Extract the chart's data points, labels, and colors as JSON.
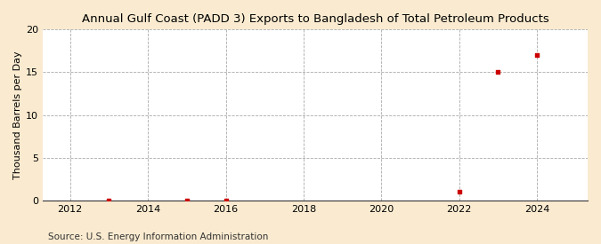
{
  "title": "Annual Gulf Coast (PADD 3) Exports to Bangladesh of Total Petroleum Products",
  "ylabel": "Thousand Barrels per Day",
  "source": "Source: U.S. Energy Information Administration",
  "background_color": "#faebd0",
  "plot_background_color": "#ffffff",
  "data_x": [
    2013,
    2015,
    2016,
    2022,
    2023,
    2024
  ],
  "data_y": [
    0.03,
    0.03,
    0.03,
    1.0,
    15.0,
    17.0
  ],
  "marker_color": "#cc0000",
  "marker_size": 3.5,
  "xlim": [
    2011.3,
    2025.3
  ],
  "ylim": [
    0,
    20
  ],
  "xticks": [
    2012,
    2014,
    2016,
    2018,
    2020,
    2022,
    2024
  ],
  "yticks": [
    0,
    5,
    10,
    15,
    20
  ],
  "grid_color": "#aaaaaa",
  "grid_style": "--",
  "title_fontsize": 9.5,
  "label_fontsize": 8,
  "tick_fontsize": 8,
  "source_fontsize": 7.5
}
